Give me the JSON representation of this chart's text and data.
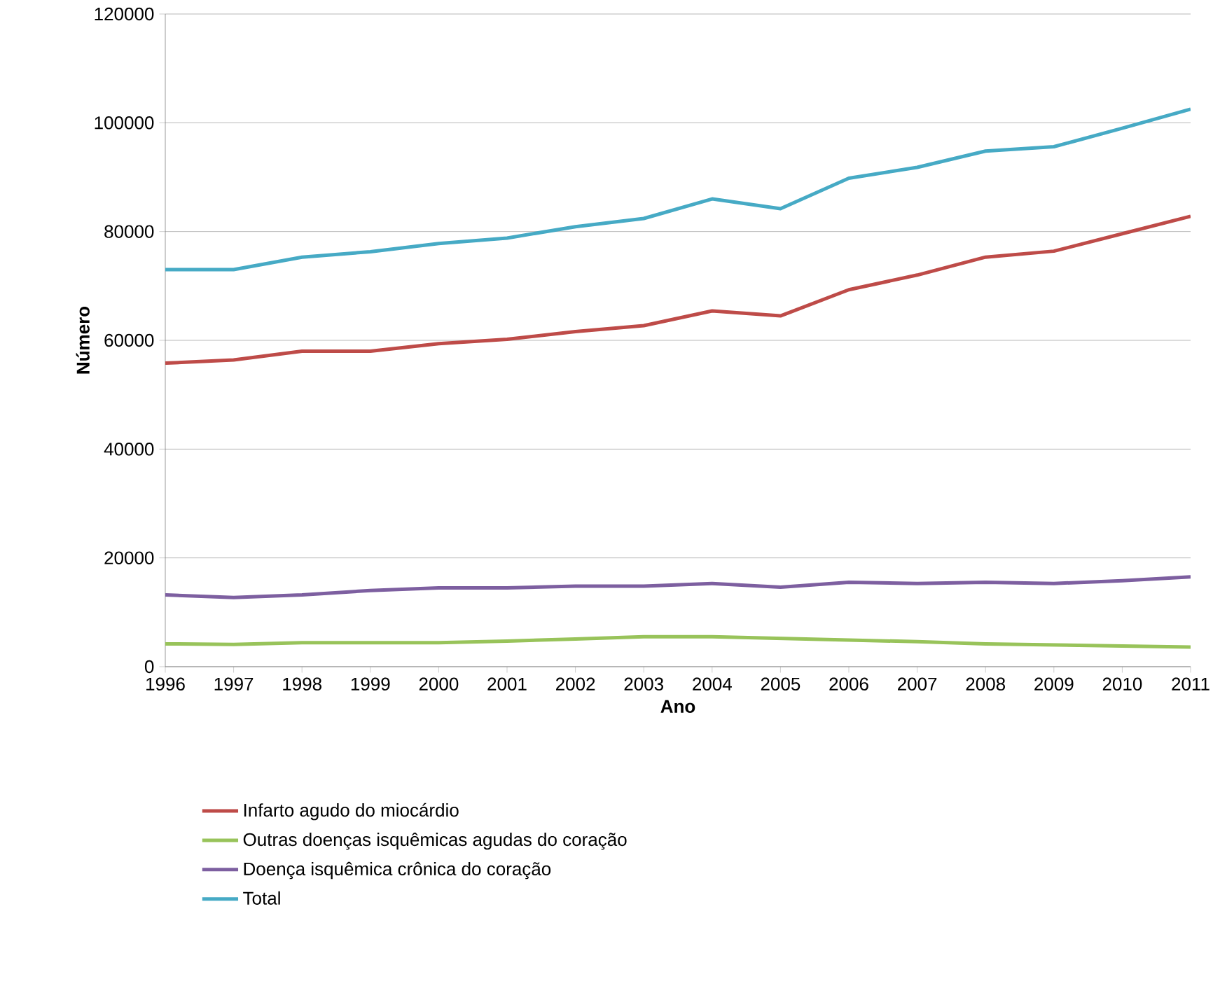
{
  "chart_data": {
    "type": "line",
    "xlabel": "Ano",
    "ylabel": "Número",
    "categories": [
      "1996",
      "1997",
      "1998",
      "1999",
      "2000",
      "2001",
      "2002",
      "2003",
      "2004",
      "2005",
      "2006",
      "2007",
      "2008",
      "2009",
      "2010",
      "2011"
    ],
    "ylim": [
      0,
      120000
    ],
    "yticks": [
      0,
      20000,
      40000,
      60000,
      80000,
      100000,
      120000
    ],
    "grid": "y",
    "legend": "bottom",
    "marker": "none",
    "line_style": "solid",
    "series": [
      {
        "name": "Infarto agudo do miocárdio",
        "color": "#be4b48",
        "values": [
          55800,
          56400,
          58000,
          58000,
          59400,
          60200,
          61600,
          62700,
          65400,
          64500,
          69300,
          72000,
          75300,
          76400,
          79600,
          82800
        ]
      },
      {
        "name": "Outras doenças isquêmicas agudas do coração",
        "color": "#98c35a",
        "values": [
          4200,
          4100,
          4400,
          4400,
          4400,
          4700,
          5100,
          5500,
          5500,
          5200,
          4900,
          4600,
          4200,
          4000,
          3800,
          3600
        ]
      },
      {
        "name": "Doença isquêmica crônica do coração",
        "color": "#7d5fa0",
        "values": [
          13200,
          12700,
          13200,
          14000,
          14500,
          14500,
          14800,
          14800,
          15300,
          14600,
          15500,
          15300,
          15500,
          15300,
          15800,
          16500
        ]
      },
      {
        "name": "Total",
        "color": "#46aac5",
        "values": [
          73000,
          73000,
          75300,
          76300,
          77800,
          78800,
          80900,
          82400,
          86000,
          84200,
          89800,
          91800,
          94800,
          95600,
          99000,
          102500
        ]
      }
    ]
  }
}
